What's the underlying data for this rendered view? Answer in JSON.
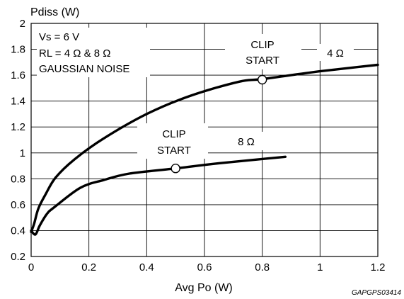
{
  "chart_data": {
    "type": "line",
    "title": "",
    "xlabel": "Avg Po (W)",
    "ylabel": "Pdiss (W)",
    "xlim": [
      0,
      1.2
    ],
    "ylim": [
      0.2,
      2
    ],
    "x_ticks": [
      0,
      0.2,
      0.4,
      0.6,
      0.8,
      1,
      1.2
    ],
    "x_tick_labels": [
      "0",
      "0.2",
      "0.4",
      "0.6",
      "0.8",
      "1",
      "1.2"
    ],
    "y_ticks": [
      0.2,
      0.4,
      0.6,
      0.8,
      1,
      1.2,
      1.4,
      1.6,
      1.8,
      2
    ],
    "y_tick_labels": [
      "0.2",
      "0.4",
      "0.6",
      "0.8",
      "1",
      "1.2",
      "1.4",
      "1.6",
      "1.8",
      "2"
    ],
    "grid": true,
    "series": [
      {
        "name": "4 Ω",
        "x": [
          0.0,
          0.01,
          0.025,
          0.05,
          0.085,
          0.15,
          0.25,
          0.4,
          0.55,
          0.72,
          0.8,
          1.0,
          1.2
        ],
        "y": [
          0.39,
          0.45,
          0.57,
          0.68,
          0.81,
          0.95,
          1.11,
          1.3,
          1.44,
          1.55,
          1.57,
          1.63,
          1.68
        ]
      },
      {
        "name": "8 Ω",
        "x": [
          0.0,
          0.015,
          0.03,
          0.055,
          0.08,
          0.17,
          0.25,
          0.34,
          0.5,
          0.65,
          0.88
        ],
        "y": [
          0.4,
          0.37,
          0.44,
          0.53,
          0.58,
          0.73,
          0.79,
          0.84,
          0.88,
          0.92,
          0.97
        ]
      }
    ],
    "clip_points": [
      {
        "series": "4 Ω",
        "x": 0.8,
        "y": 1.565
      },
      {
        "series": "8 Ω",
        "x": 0.5,
        "y": 0.88
      }
    ],
    "annotations": {
      "conditions": [
        "Vs = 6 V",
        "RL = 4 Ω & 8 Ω",
        "GAUSSIAN NOISE"
      ],
      "clip_4_line1": "CLIP",
      "clip_4_line2": "START",
      "clip_8_line1": "CLIP",
      "clip_8_line2": "START",
      "series_4_label": "4 Ω",
      "series_8_label": "8 Ω"
    },
    "figure_code": "GAPGPS03414"
  }
}
